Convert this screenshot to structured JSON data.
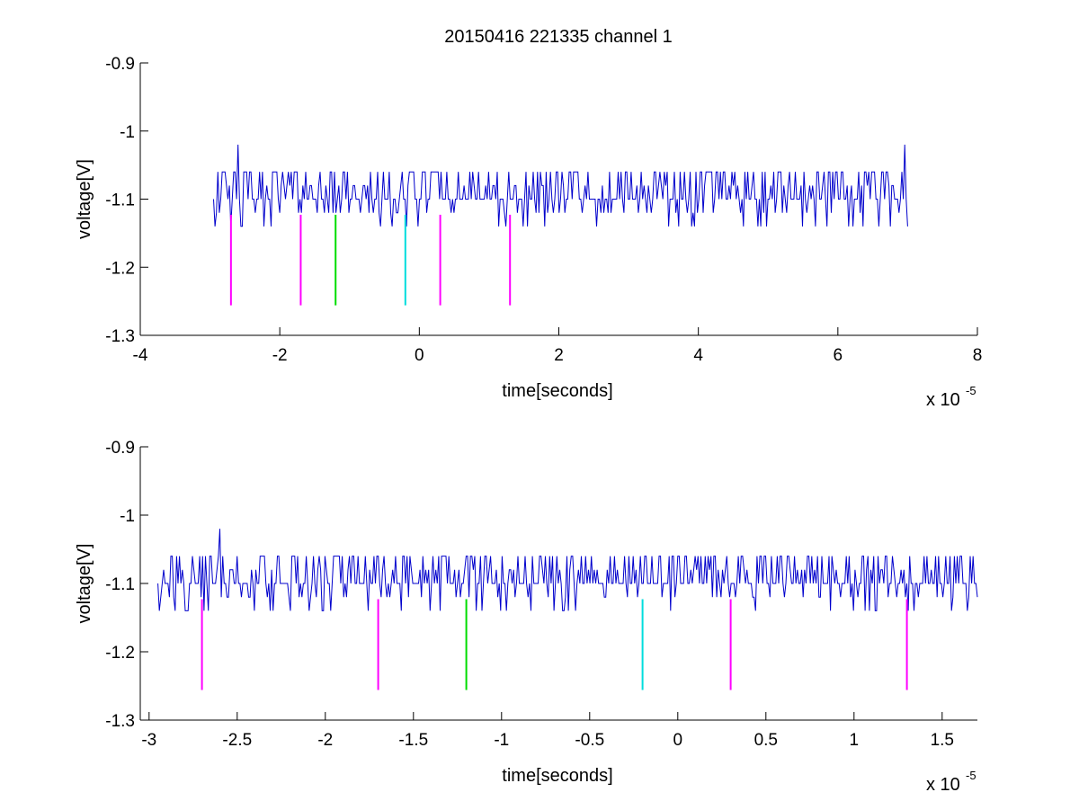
{
  "figure": {
    "title": "20150416 221335 channel 1"
  },
  "chart_data": [
    {
      "type": "line",
      "title": "20150416 221335 channel 1",
      "xlabel": "time[seconds]",
      "ylabel": "voltage[V]",
      "x_multiplier": "x 10",
      "x_exponent": "-5",
      "xlim": [
        -4,
        8
      ],
      "ylim": [
        -1.3,
        -0.9
      ],
      "xticks": [
        -4,
        -2,
        0,
        2,
        4,
        6,
        8
      ],
      "xtick_labels": [
        "-4",
        "-2",
        "0",
        "2",
        "4",
        "6",
        "8"
      ],
      "yticks": [
        -1.3,
        -1.2,
        -1.1,
        -1.0,
        -0.9
      ],
      "ytick_labels": [
        "-1.3",
        "-1.2",
        "-1.1",
        "-1",
        "-0.9"
      ],
      "grid": false,
      "signal": {
        "color": "#0000cc",
        "x_range": [
          -2.95,
          7.0
        ],
        "levels": [
          -1.14,
          -1.12,
          -1.1,
          -1.08,
          -1.06
        ],
        "baseline": -1.1,
        "spikes": [
          {
            "x": -2.6,
            "y": -1.02
          },
          {
            "x": 6.95,
            "y": -1.02
          }
        ]
      },
      "markers": [
        {
          "x": -2.7,
          "y_top": -1.123,
          "y_bottom": -1.256,
          "color": "#ff00ff"
        },
        {
          "x": -1.7,
          "y_top": -1.123,
          "y_bottom": -1.256,
          "color": "#ff00ff"
        },
        {
          "x": -1.2,
          "y_top": -1.123,
          "y_bottom": -1.256,
          "color": "#00dd00"
        },
        {
          "x": -0.2,
          "y_top": -1.123,
          "y_bottom": -1.256,
          "color": "#00dddd"
        },
        {
          "x": 0.3,
          "y_top": -1.123,
          "y_bottom": -1.256,
          "color": "#ff00ff"
        },
        {
          "x": 1.3,
          "y_top": -1.123,
          "y_bottom": -1.256,
          "color": "#ff00ff"
        }
      ]
    },
    {
      "type": "line",
      "xlabel": "time[seconds]",
      "ylabel": "voltage[V]",
      "x_multiplier": "x 10",
      "x_exponent": "-5",
      "xlim": [
        -3.05,
        1.7
      ],
      "ylim": [
        -1.3,
        -0.9
      ],
      "xticks": [
        -3,
        -2.5,
        -2,
        -1.5,
        -1,
        -0.5,
        0,
        0.5,
        1,
        1.5
      ],
      "xtick_labels": [
        "-3",
        "-2.5",
        "-2",
        "-1.5",
        "-1",
        "-0.5",
        "0",
        "0.5",
        "1",
        "1.5"
      ],
      "yticks": [
        -1.3,
        -1.2,
        -1.1,
        -1.0,
        -0.9
      ],
      "ytick_labels": [
        "-1.3",
        "-1.2",
        "-1.1",
        "-1",
        "-0.9"
      ],
      "grid": false,
      "signal": {
        "color": "#0000cc",
        "x_range": [
          -2.95,
          1.7
        ],
        "levels": [
          -1.14,
          -1.12,
          -1.1,
          -1.08,
          -1.06
        ],
        "baseline": -1.1,
        "spikes": [
          {
            "x": -2.6,
            "y": -1.02
          }
        ]
      },
      "markers": [
        {
          "x": -2.7,
          "y_top": -1.123,
          "y_bottom": -1.256,
          "color": "#ff00ff"
        },
        {
          "x": -1.7,
          "y_top": -1.123,
          "y_bottom": -1.256,
          "color": "#ff00ff"
        },
        {
          "x": -1.2,
          "y_top": -1.123,
          "y_bottom": -1.256,
          "color": "#00dd00"
        },
        {
          "x": -0.2,
          "y_top": -1.123,
          "y_bottom": -1.256,
          "color": "#00dddd"
        },
        {
          "x": 0.3,
          "y_top": -1.123,
          "y_bottom": -1.256,
          "color": "#ff00ff"
        },
        {
          "x": 1.3,
          "y_top": -1.123,
          "y_bottom": -1.256,
          "color": "#ff00ff"
        }
      ]
    }
  ]
}
